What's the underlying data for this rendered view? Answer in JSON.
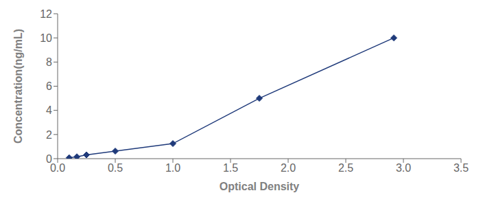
{
  "chart_data": {
    "type": "line",
    "xlabel": "Optical Density",
    "ylabel": "Concentration(ng/mL)",
    "x": [
      0.1,
      0.167,
      0.25,
      0.5,
      1.0,
      1.75,
      2.917
    ],
    "values": [
      0.078,
      0.156,
      0.312,
      0.625,
      1.25,
      5.0,
      10.0
    ],
    "color": "#1F3A7A",
    "marker": "diamond",
    "xlim": [
      0,
      3.5
    ],
    "ylim": [
      0,
      12
    ],
    "xticks": [
      {
        "value": 0,
        "label": "0.0"
      },
      0.5,
      {
        "value": 1.0,
        "label": "1.0"
      },
      1.5,
      {
        "value": 2.0,
        "label": "2.0"
      },
      2.5,
      {
        "value": 3.0,
        "label": "3.0"
      },
      3.5
    ],
    "yticks": [
      0,
      2,
      4,
      6,
      8,
      10,
      12
    ]
  }
}
